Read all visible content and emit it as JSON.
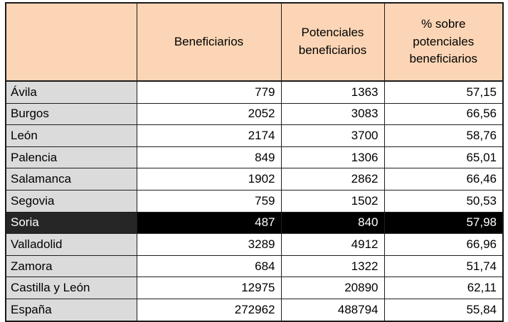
{
  "chart_data": {
    "type": "table",
    "columns": [
      "",
      "Beneficiarios",
      "Potenciales beneficiarios",
      "% sobre potenciales beneficiarios"
    ],
    "rows": [
      {
        "label": "Ávila",
        "values": [
          779,
          1363,
          "57,15"
        ],
        "highlight": false
      },
      {
        "label": "Burgos",
        "values": [
          2052,
          3083,
          "66,56"
        ],
        "highlight": false
      },
      {
        "label": "León",
        "values": [
          2174,
          3700,
          "58,76"
        ],
        "highlight": false
      },
      {
        "label": "Palencia",
        "values": [
          849,
          1306,
          "65,01"
        ],
        "highlight": false
      },
      {
        "label": "Salamanca",
        "values": [
          1902,
          2862,
          "66,46"
        ],
        "highlight": false
      },
      {
        "label": "Segovia",
        "values": [
          759,
          1502,
          "50,53"
        ],
        "highlight": false
      },
      {
        "label": "Soria",
        "values": [
          487,
          840,
          "57,98"
        ],
        "highlight": true
      },
      {
        "label": "Valladolid",
        "values": [
          3289,
          4912,
          "66,96"
        ],
        "highlight": false
      },
      {
        "label": "Zamora",
        "values": [
          684,
          1322,
          "51,74"
        ],
        "highlight": false
      },
      {
        "label": "Castilla y León",
        "values": [
          12975,
          20890,
          "62,11"
        ],
        "highlight": false
      },
      {
        "label": "España",
        "values": [
          272962,
          488794,
          "55,84"
        ],
        "highlight": false
      }
    ],
    "highlighted_row": "Soria",
    "layout": {
      "grid": true,
      "legend": "none"
    },
    "colors": {
      "header_bg": "#FBD5B5",
      "row_label_bg": "#DBDBDB",
      "highlight_label_bg": "#262626",
      "highlight_cell_bg": "#000000",
      "highlight_text": "#ffffff",
      "border": "#1a1a1a"
    }
  }
}
